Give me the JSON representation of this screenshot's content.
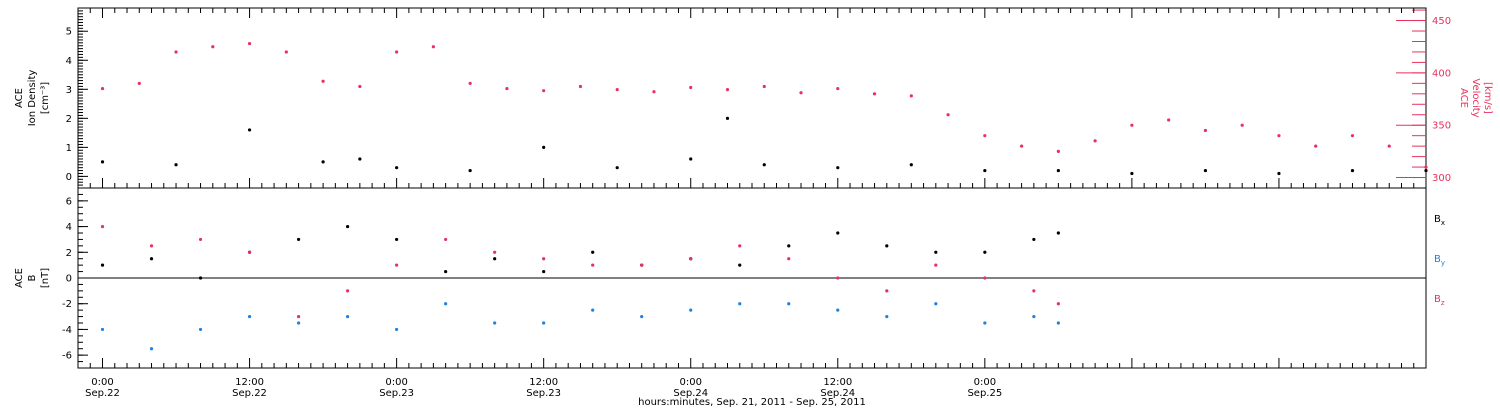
{
  "chart_data": [
    {
      "type": "scatter",
      "panel": "top",
      "ylabel_left": [
        "ACE",
        "Ion Density",
        "[cm⁻³]"
      ],
      "ylabel_right": [
        "ACE",
        "Velocity",
        "[km/s]"
      ],
      "y_left_ticks": [
        "0",
        "1",
        "2",
        "3",
        "4",
        "5"
      ],
      "y_left_lim": [
        -0.4,
        5.8
      ],
      "y_right_ticks": [
        "300",
        "350",
        "400",
        "450"
      ],
      "y_right_lim": [
        290,
        462
      ],
      "series": [
        {
          "color": "#000000",
          "axis": "left",
          "x": [
            0,
            6,
            12,
            18,
            21,
            24,
            30,
            36,
            42,
            48,
            51,
            54,
            60,
            66,
            72,
            78,
            84,
            90,
            96,
            102,
            108
          ],
          "y": [
            0.5,
            0.4,
            1.6,
            0.5,
            0.6,
            0.3,
            0.2,
            1.0,
            0.3,
            0.6,
            2.0,
            0.4,
            0.3,
            0.4,
            0.2,
            0.2,
            0.1,
            0.2,
            0.1,
            0.2,
            0.2
          ]
        },
        {
          "color": "#e8325e",
          "axis": "right",
          "x": [
            0,
            3,
            6,
            9,
            12,
            15,
            18,
            21,
            24,
            27,
            30,
            33,
            36,
            39,
            42,
            45,
            48,
            51,
            54,
            57,
            60,
            63,
            66,
            69,
            72,
            75,
            78,
            81,
            84,
            87,
            90,
            93,
            96,
            99,
            102,
            105,
            108
          ],
          "y": [
            385,
            390,
            420,
            425,
            428,
            420,
            392,
            387,
            420,
            425,
            390,
            385,
            383,
            387,
            384,
            382,
            386,
            384,
            387,
            381,
            385,
            380,
            378,
            360,
            340,
            330,
            325,
            335,
            350,
            355,
            345,
            350,
            340,
            330,
            340,
            330,
            310
          ]
        }
      ]
    },
    {
      "type": "scatter",
      "panel": "bottom",
      "ylabel": [
        "ACE",
        "B",
        "[nT]"
      ],
      "y_ticks": [
        "-6",
        "-4",
        "-2",
        "0",
        "2",
        "4",
        "6"
      ],
      "ylim": [
        -7,
        7
      ],
      "zero_line": true,
      "xlabel": "hours:minutes, Sep. 21, 2011 - Sep. 25, 2011",
      "xlim": [
        -2,
        108
      ],
      "x_tick_labels": [
        {
          "time": "0:00",
          "date": "Sep.22"
        },
        {
          "time": "12:00",
          "date": "Sep.22"
        },
        {
          "time": "0:00",
          "date": "Sep.23"
        },
        {
          "time": "12:00",
          "date": "Sep.23"
        },
        {
          "time": "0:00",
          "date": "Sep.24"
        },
        {
          "time": "12:00",
          "date": "Sep.24"
        },
        {
          "time": "0:00",
          "date": "Sep.25"
        }
      ],
      "series": [
        {
          "name": "Bx",
          "legend_base": "B",
          "legend_sub": "x",
          "color": "#000000",
          "x": [
            0,
            4,
            8,
            12,
            16,
            20,
            24,
            28,
            32,
            36,
            40,
            44,
            48,
            52,
            56,
            60,
            64,
            68,
            72,
            76,
            78
          ],
          "y": [
            1.0,
            1.5,
            0.0,
            2.0,
            3.0,
            4.0,
            3.0,
            0.5,
            1.5,
            0.5,
            2.0,
            1.0,
            1.5,
            1.0,
            2.5,
            3.5,
            2.5,
            2.0,
            2.0,
            3.0,
            3.5
          ]
        },
        {
          "name": "By",
          "legend_base": "B",
          "legend_sub": "y",
          "color": "#1e82e0",
          "x": [
            0,
            4,
            8,
            12,
            16,
            20,
            24,
            28,
            32,
            36,
            40,
            44,
            48,
            52,
            56,
            60,
            64,
            68,
            72,
            76,
            78
          ],
          "y": [
            -4.0,
            -5.5,
            -4.0,
            -3.0,
            -3.5,
            -3.0,
            -4.0,
            -2.0,
            -3.5,
            -3.5,
            -2.5,
            -3.0,
            -2.5,
            -2.0,
            -2.0,
            -2.5,
            -3.0,
            -2.0,
            -3.5,
            -3.0,
            -3.5
          ]
        },
        {
          "name": "Bz",
          "legend_base": "B",
          "legend_sub": "z",
          "color": "#e8325e",
          "x": [
            0,
            4,
            8,
            12,
            16,
            20,
            24,
            28,
            32,
            36,
            40,
            44,
            48,
            52,
            56,
            60,
            64,
            68,
            72,
            76,
            78
          ],
          "y": [
            4.0,
            2.5,
            3.0,
            2.0,
            -3.0,
            -1.0,
            1.0,
            3.0,
            2.0,
            1.5,
            1.0,
            1.0,
            1.5,
            2.5,
            1.5,
            0.0,
            -1.0,
            1.0,
            0.0,
            -1.0,
            -2.0
          ]
        }
      ]
    }
  ]
}
